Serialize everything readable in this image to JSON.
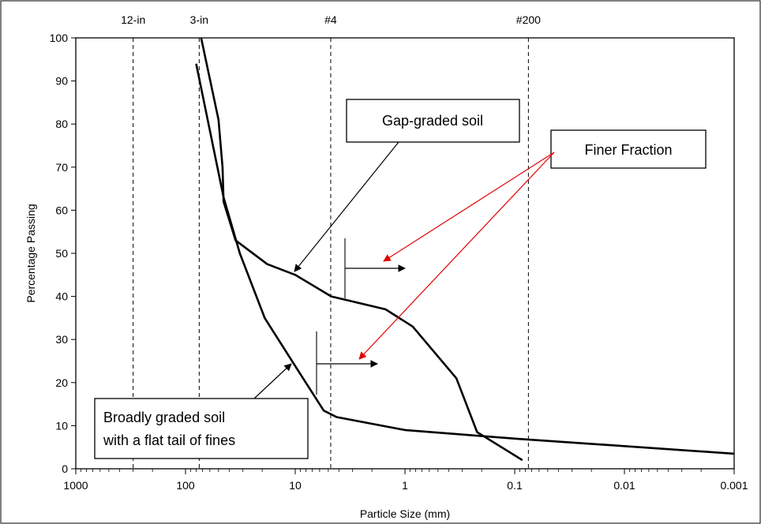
{
  "chart_data": {
    "type": "line",
    "title": "",
    "xlabel": "Particle Size (mm)",
    "ylabel": "Percentage Passing",
    "x_scale": "log",
    "x_reversed": true,
    "xlim": [
      1000,
      0.001
    ],
    "ylim": [
      0,
      100
    ],
    "x_ticks": [
      {
        "value": 1000,
        "label": "1000"
      },
      {
        "value": 100,
        "label": "100"
      },
      {
        "value": 10,
        "label": "10"
      },
      {
        "value": 1,
        "label": "1"
      },
      {
        "value": 0.1,
        "label": "0.1"
      },
      {
        "value": 0.01,
        "label": "0.01"
      },
      {
        "value": 0.001,
        "label": "0.001"
      }
    ],
    "y_ticks": [
      {
        "value": 0,
        "label": "0"
      },
      {
        "value": 10,
        "label": "10"
      },
      {
        "value": 20,
        "label": "20"
      },
      {
        "value": 30,
        "label": "30"
      },
      {
        "value": 40,
        "label": "40"
      },
      {
        "value": 50,
        "label": "50"
      },
      {
        "value": 60,
        "label": "60"
      },
      {
        "value": 70,
        "label": "70"
      },
      {
        "value": 80,
        "label": "80"
      },
      {
        "value": 90,
        "label": "90"
      },
      {
        "value": 100,
        "label": "100"
      }
    ],
    "grid": false,
    "reference_lines": [
      {
        "label": "12-in",
        "x": 300
      },
      {
        "label": "3-in",
        "x": 75
      },
      {
        "label": "#4",
        "x": 4.75
      },
      {
        "label": "#200",
        "x": 0.075
      }
    ],
    "series": [
      {
        "color": "#000000",
        "points": [
          {
            "x": 72,
            "y": 100
          },
          {
            "x": 50,
            "y": 81
          },
          {
            "x": 46,
            "y": 70
          },
          {
            "x": 45,
            "y": 62
          },
          {
            "x": 35,
            "y": 53
          },
          {
            "x": 18,
            "y": 47.5
          },
          {
            "x": 10,
            "y": 45
          },
          {
            "x": 4.7,
            "y": 40
          },
          {
            "x": 1.5,
            "y": 37
          },
          {
            "x": 0.85,
            "y": 33
          },
          {
            "x": 0.34,
            "y": 21
          },
          {
            "x": 0.22,
            "y": 8.5
          },
          {
            "x": 0.085,
            "y": 2
          }
        ]
      },
      {
        "color": "#000000",
        "points": [
          {
            "x": 80,
            "y": 94
          },
          {
            "x": 45,
            "y": 63
          },
          {
            "x": 32,
            "y": 50
          },
          {
            "x": 19,
            "y": 35
          },
          {
            "x": 9,
            "y": 22
          },
          {
            "x": 5.5,
            "y": 13.5
          },
          {
            "x": 4.2,
            "y": 12
          },
          {
            "x": 1,
            "y": 9
          },
          {
            "x": 0.1,
            "y": 7
          },
          {
            "x": 0.001,
            "y": 3.5
          }
        ]
      }
    ],
    "annotations": [
      {
        "text": "Gap-graded soil"
      },
      {
        "text": "Finer Fraction"
      },
      {
        "text_lines": [
          "Broadly graded soil",
          "with a flat tail of fines"
        ]
      }
    ]
  }
}
